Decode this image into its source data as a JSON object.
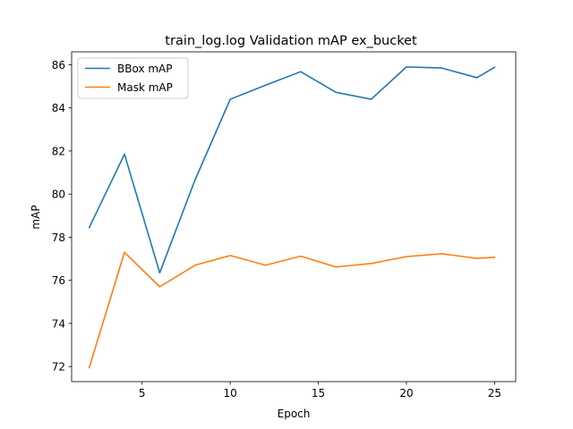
{
  "chart_data": {
    "type": "line",
    "title": "train_log.log Validation mAP ex_bucket",
    "xlabel": "Epoch",
    "ylabel": "mAP",
    "xlim": [
      1.0,
      26.2
    ],
    "ylim": [
      71.3,
      86.6
    ],
    "xticks": [
      5,
      10,
      15,
      20,
      25
    ],
    "yticks": [
      72,
      74,
      76,
      78,
      80,
      82,
      84,
      86
    ],
    "grid": false,
    "legend_position": "top-left",
    "x": [
      2,
      4,
      6,
      8,
      10,
      12,
      14,
      16,
      18,
      20,
      22,
      24,
      25
    ],
    "series": [
      {
        "name": "BBox mAP",
        "color": "#1f77b4",
        "values": [
          78.45,
          81.85,
          76.35,
          80.65,
          84.4,
          85.05,
          85.68,
          84.72,
          84.4,
          85.9,
          85.85,
          85.4,
          85.88
        ]
      },
      {
        "name": "Mask mAP",
        "color": "#ff7f0e",
        "values": [
          71.95,
          77.3,
          75.7,
          76.7,
          77.15,
          76.7,
          77.12,
          76.62,
          76.78,
          77.1,
          77.23,
          77.02,
          77.07
        ]
      }
    ]
  }
}
